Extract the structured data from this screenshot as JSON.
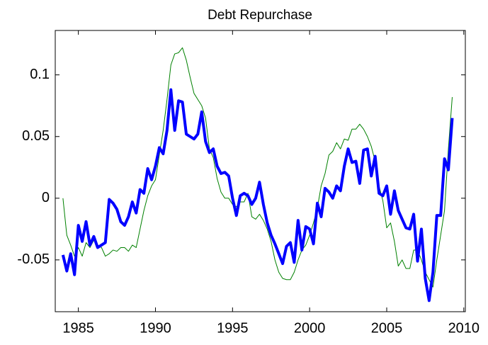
{
  "chart_data": {
    "type": "line",
    "title": "Debt Repurchase",
    "x": [
      1984,
      1984.25,
      1984.5,
      1984.75,
      1985,
      1985.25,
      1985.5,
      1985.75,
      1986,
      1986.25,
      1986.5,
      1986.75,
      1987,
      1987.25,
      1987.5,
      1987.75,
      1988,
      1988.25,
      1988.5,
      1988.75,
      1989,
      1989.25,
      1989.5,
      1989.75,
      1990,
      1990.25,
      1990.5,
      1990.75,
      1991,
      1991.25,
      1991.5,
      1991.75,
      1992,
      1992.25,
      1992.5,
      1992.75,
      1993,
      1993.25,
      1993.5,
      1993.75,
      1994,
      1994.25,
      1994.5,
      1994.75,
      1995,
      1995.25,
      1995.5,
      1995.75,
      1996,
      1996.25,
      1996.5,
      1996.75,
      1997,
      1997.25,
      1997.5,
      1997.75,
      1998,
      1998.25,
      1998.5,
      1998.75,
      1999,
      1999.25,
      1999.5,
      1999.75,
      2000,
      2000.25,
      2000.5,
      2000.75,
      2001,
      2001.25,
      2001.5,
      2001.75,
      2002,
      2002.25,
      2002.5,
      2002.75,
      2003,
      2003.25,
      2003.5,
      2003.75,
      2004,
      2004.25,
      2004.5,
      2004.75,
      2005,
      2005.25,
      2005.5,
      2005.75,
      2006,
      2006.25,
      2006.5,
      2006.75,
      2007,
      2007.25,
      2007.5,
      2007.75,
      2008,
      2008.25,
      2008.5,
      2008.75,
      2009,
      2009.25
    ],
    "series": [
      {
        "color": "#008000",
        "width": 1,
        "values": [
          0,
          -0.03,
          -0.038,
          -0.047,
          -0.04,
          -0.047,
          -0.036,
          -0.04,
          -0.034,
          -0.038,
          -0.04,
          -0.047,
          -0.045,
          -0.042,
          -0.043,
          -0.04,
          -0.04,
          -0.043,
          -0.038,
          -0.04,
          -0.025,
          -0.01,
          0.002,
          0.01,
          0.015,
          0.035,
          0.055,
          0.08,
          0.108,
          0.117,
          0.118,
          0.122,
          0.112,
          0.098,
          0.085,
          0.08,
          0.075,
          0.065,
          0.04,
          0.033,
          0.016,
          0.005,
          0,
          0,
          -0.005,
          -0.007,
          -0.003,
          -0.003,
          0.004,
          -0.015,
          -0.017,
          -0.013,
          -0.018,
          -0.025,
          -0.035,
          -0.05,
          -0.06,
          -0.065,
          -0.066,
          -0.066,
          -0.06,
          -0.05,
          -0.042,
          -0.038,
          -0.03,
          -0.02,
          -0.008,
          0.01,
          0.02,
          0.035,
          0.038,
          0.045,
          0.04,
          0.048,
          0.047,
          0.056,
          0.056,
          0.06,
          0.056,
          0.05,
          0.042,
          0.03,
          0.01,
          -0.002,
          -0.024,
          -0.02,
          -0.035,
          -0.055,
          -0.05,
          -0.057,
          -0.057,
          -0.042,
          -0.042,
          -0.05,
          -0.06,
          -0.066,
          -0.072,
          -0.05,
          -0.03,
          -0.01,
          0.04,
          0.082
        ]
      },
      {
        "color": "#0000ff",
        "width": 4,
        "values": [
          -0.046,
          -0.059,
          -0.045,
          -0.062,
          -0.022,
          -0.035,
          -0.019,
          -0.038,
          -0.031,
          -0.04,
          -0.038,
          -0.036,
          -0.001,
          -0.004,
          -0.009,
          -0.019,
          -0.022,
          -0.015,
          -0.003,
          -0.012,
          0.007,
          0.004,
          0.024,
          0.015,
          0.026,
          0.041,
          0.036,
          0.055,
          0.088,
          0.055,
          0.079,
          0.078,
          0.052,
          0.05,
          0.048,
          0.052,
          0.07,
          0.046,
          0.037,
          0.04,
          0.026,
          0.02,
          0.021,
          0.018,
          0,
          -0.014,
          0.002,
          0.004,
          0.002,
          -0.005,
          0,
          0.013,
          -0.005,
          -0.02,
          -0.03,
          -0.037,
          -0.045,
          -0.053,
          -0.039,
          -0.036,
          -0.052,
          -0.018,
          -0.042,
          -0.023,
          -0.025,
          -0.037,
          -0.004,
          -0.015,
          0.008,
          0.005,
          0,
          0.01,
          0.006,
          0.026,
          0.04,
          0.029,
          0.03,
          0.012,
          0.039,
          0.04,
          0.018,
          0.034,
          0.004,
          0.002,
          0.01,
          -0.013,
          0.006,
          -0.01,
          -0.017,
          -0.024,
          -0.025,
          -0.013,
          -0.051,
          -0.025,
          -0.065,
          -0.083,
          -0.06,
          -0.014,
          -0.014,
          0.032,
          0.023,
          0.065
        ]
      }
    ],
    "xlim": [
      1983.5,
      2010.1
    ],
    "ylim": [
      -0.092,
      0.136
    ],
    "xticks": [
      1985,
      1990,
      1995,
      2000,
      2005,
      2010
    ],
    "yticks": [
      -0.05,
      0,
      0.05,
      0.1
    ]
  }
}
